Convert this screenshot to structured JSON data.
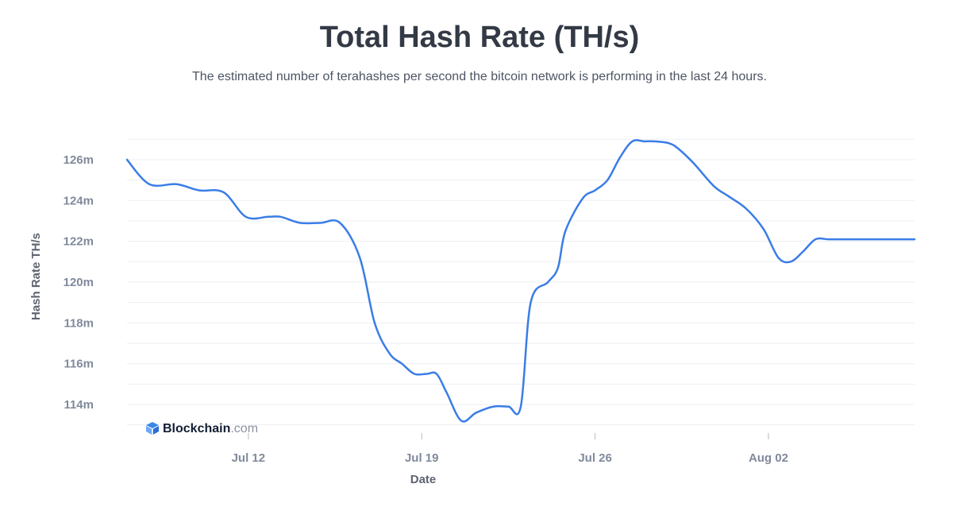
{
  "header": {
    "title": "Total Hash Rate (TH/s)",
    "subtitle": "The estimated number of terahashes per second the bitcoin network is performing in the last 24 hours."
  },
  "watermark": {
    "brand": "Blockchain",
    "suffix": ".com",
    "icon": "blockchain-logo-icon"
  },
  "colors": {
    "line": "#3a7de6",
    "grid": "#eeeff2",
    "tick_text": "#808a9b"
  },
  "chart_data": {
    "type": "line",
    "title": "Total Hash Rate (TH/s)",
    "subtitle": "The estimated number of terahashes per second the bitcoin network is performing in the last 24 hours.",
    "xlabel": "Date",
    "ylabel": "Hash Rate TH/s",
    "x_tick_labels": [
      "Jul 12",
      "Jul 19",
      "Jul 26",
      "Aug 02"
    ],
    "y_tick_labels": [
      "114m",
      "116m",
      "118m",
      "120m",
      "122m",
      "124m",
      "126m"
    ],
    "y_ticks": [
      114,
      116,
      118,
      120,
      122,
      124,
      126
    ],
    "ylim": [
      113,
      127.2
    ],
    "grid": true,
    "legend": "none",
    "series": [
      {
        "x": [
          7.1,
          8.0,
          9.1,
          10.0,
          11.0,
          11.9,
          12.8,
          13.3,
          14.1,
          14.9,
          15.7,
          16.5,
          17.1,
          17.7,
          18.2,
          18.7,
          19.2,
          19.6,
          20.0,
          20.6,
          21.2,
          21.9,
          22.5,
          23.0,
          23.4,
          24.1,
          24.5,
          24.8,
          25.5,
          26.0,
          26.5,
          27.0,
          27.5,
          28.0,
          28.4,
          29.0,
          29.4,
          30.0,
          30.8,
          31.4,
          32.1,
          32.8,
          33.4,
          33.9,
          34.4,
          34.9,
          35.4,
          35.8,
          36.2,
          36.6,
          37.0,
          37.3,
          37.7,
          38.0,
          38.4,
          38.9
        ],
        "values": [
          126.0,
          124.8,
          124.8,
          124.5,
          124.4,
          123.2,
          123.2,
          123.2,
          122.9,
          122.9,
          122.9,
          121.2,
          118.0,
          116.5,
          116.0,
          115.5,
          115.5,
          115.5,
          114.6,
          113.2,
          113.6,
          113.9,
          113.9,
          113.9,
          119.0,
          120.0,
          120.7,
          122.5,
          124.1,
          124.5,
          125.0,
          126.1,
          126.9,
          126.9,
          126.9,
          126.8,
          126.5,
          125.8,
          124.7,
          124.2,
          123.6,
          122.6,
          121.2,
          121.0,
          121.5,
          122.1,
          122.1,
          122.1,
          122.1,
          122.1,
          122.1,
          122.1,
          122.1,
          122.1,
          122.1,
          122.1
        ]
      }
    ]
  }
}
